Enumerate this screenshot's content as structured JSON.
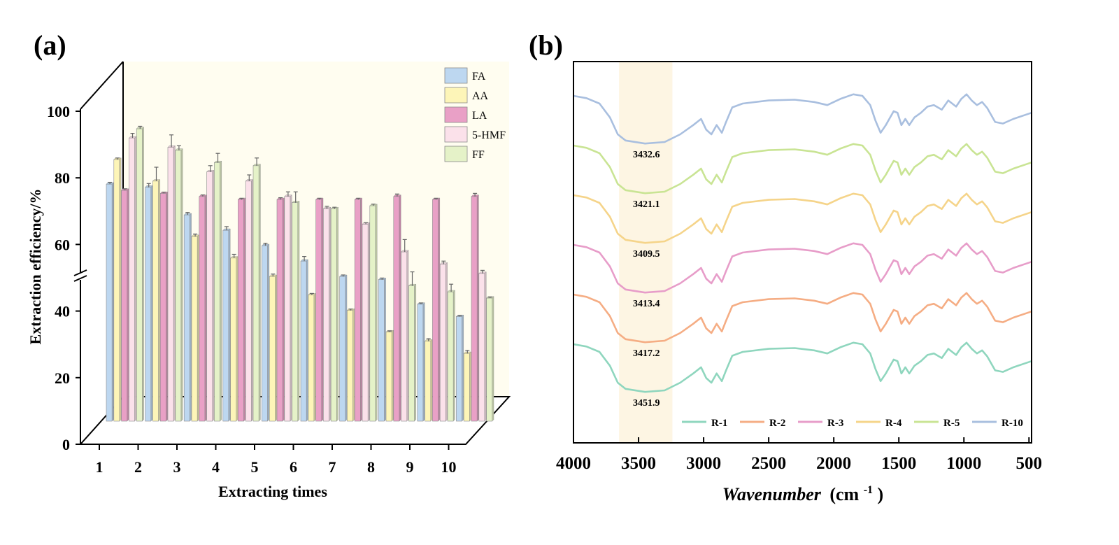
{
  "panels": {
    "a": {
      "label": "(a)"
    },
    "b": {
      "label": "(b)"
    }
  },
  "chart_data": [
    {
      "type": "bar",
      "panel": "a",
      "title": "",
      "xlabel": "Extracting times",
      "ylabel": "Extraction efficiency/%",
      "categories": [
        "1",
        "2",
        "3",
        "4",
        "5",
        "6",
        "7",
        "8",
        "9",
        "10"
      ],
      "yticks": [
        "0",
        "20",
        "40",
        "60",
        "80",
        "100"
      ],
      "axis_break": "50",
      "ylim": [
        0,
        100
      ],
      "legend_position": "top-right",
      "series": [
        {
          "name": "FA",
          "color": "#bdd7f0",
          "values": [
            77,
            76,
            67,
            62,
            57,
            52,
            47,
            46,
            38,
            34
          ],
          "errors": [
            0.6,
            1.2,
            0.8,
            1.2,
            0.8,
            1.5,
            0.5,
            0.5,
            0.4,
            0.3
          ]
        },
        {
          "name": "AA",
          "color": "#fdf5b8",
          "values": [
            85,
            78,
            60,
            53,
            47,
            41,
            36,
            29,
            26,
            22
          ],
          "errors": [
            0.5,
            4.5,
            0.8,
            1.2,
            0.8,
            0.5,
            0.4,
            0.3,
            0.8,
            1.0
          ]
        },
        {
          "name": "LA",
          "color": "#e9a0c6",
          "values": [
            75,
            74,
            73,
            72,
            72,
            72,
            72,
            73,
            72,
            73
          ],
          "errors": [
            0.5,
            0.4,
            0.5,
            0.4,
            0.6,
            0.4,
            0.4,
            0.8,
            0.4,
            1.0
          ]
        },
        {
          "name": "5-HMF",
          "color": "#fbe1ea",
          "values": [
            92,
            89,
            81,
            78,
            73,
            69,
            64,
            55,
            51,
            48
          ],
          "errors": [
            1.5,
            4.0,
            2.0,
            2.0,
            1.5,
            0.8,
            0.5,
            4.0,
            1.0,
            1.0
          ]
        },
        {
          "name": "FF",
          "color": "#e5f2c8",
          "values": [
            95,
            88,
            84,
            83,
            71,
            69,
            70,
            44,
            42,
            40
          ],
          "errors": [
            0.8,
            1.5,
            3.0,
            2.5,
            3.5,
            0.5,
            0.5,
            4.5,
            2.5,
            0.3
          ]
        }
      ]
    },
    {
      "type": "line",
      "panel": "b",
      "title": "",
      "xlabel": "Wavenumber",
      "xlabel_unit": "(cm",
      "xlabel_sup": "-1",
      "xlabel_close": ")",
      "xlim": [
        4000,
        480
      ],
      "xticks": [
        4000,
        3500,
        3000,
        2500,
        2000,
        1500,
        1000,
        500
      ],
      "xtick_labels": [
        "4000",
        "3500",
        "3000",
        "2500",
        "2000",
        "1500",
        "1000",
        "500"
      ],
      "highlight_range": [
        3650,
        3240
      ],
      "legend_position": "bottom",
      "series": [
        {
          "name": "R-1",
          "color": "#8fd6be",
          "offset": 0,
          "peak_label": "3451.9"
        },
        {
          "name": "R-2",
          "color": "#f5ad84",
          "offset": 1,
          "peak_label": "3417.2"
        },
        {
          "name": "R-3",
          "color": "#e79dc9",
          "offset": 2,
          "peak_label": "3413.4"
        },
        {
          "name": "R-4",
          "color": "#f5d48a",
          "offset": 3,
          "peak_label": "3409.5"
        },
        {
          "name": "R-5",
          "color": "#c9e494",
          "offset": 4,
          "peak_label": "3421.1"
        },
        {
          "name": "R-10",
          "color": "#a9bfdf",
          "offset": 5,
          "peak_label": "3432.6"
        }
      ]
    }
  ]
}
